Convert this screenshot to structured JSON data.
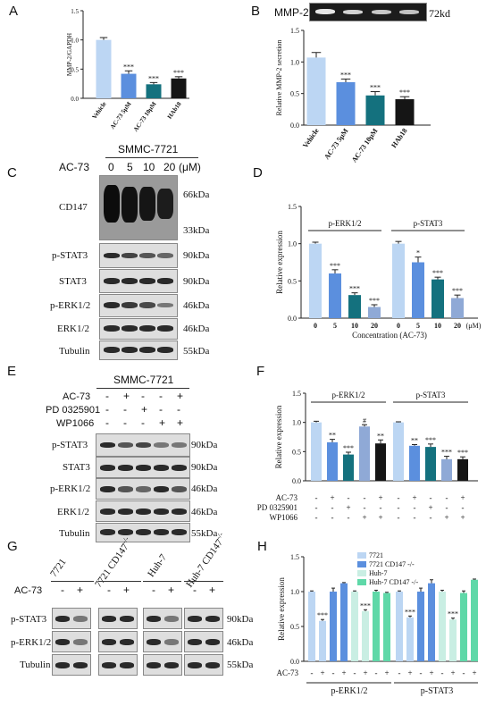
{
  "panels": {
    "A": "A",
    "B": "B",
    "C": "C",
    "D": "D",
    "E": "E",
    "F": "F",
    "G": "G",
    "H": "H"
  },
  "colors": {
    "vehicle": "#bcd6f3",
    "ac5": "#5b8fde",
    "ac10": "#14717e",
    "hab": "#151515",
    "c5": "#5b8fde",
    "c10": "#14717e",
    "c20": "#8fa9d6",
    "c0": "#bcd6f3",
    "hepG_light": "#c9eee3",
    "hep_green": "#5fd8a8"
  },
  "chart_data": [
    {
      "panel": "A",
      "type": "bar",
      "categories": [
        "Vehicle",
        "AC-73 5μM",
        "AC-73 10μM",
        "HAb18"
      ],
      "values": [
        1.0,
        0.42,
        0.24,
        0.34
      ],
      "errors": [
        0.04,
        0.05,
        0.03,
        0.03
      ],
      "stars": [
        "",
        "***",
        "***",
        "***"
      ],
      "ylabel": "MMP-2/GAPDH",
      "ylim": [
        0,
        1.5
      ],
      "yticks": [
        "0.0",
        "0.5",
        "1.0",
        "1.5"
      ]
    },
    {
      "panel": "B",
      "type": "bar",
      "categories": [
        "Vehicle",
        "AC-73 5μM",
        "AC-73 10μM",
        "HAb18"
      ],
      "values": [
        1.07,
        0.68,
        0.47,
        0.41
      ],
      "errors": [
        0.08,
        0.05,
        0.06,
        0.04
      ],
      "stars": [
        "",
        "***",
        "***",
        "***"
      ],
      "ylabel": "Relative MMP-2 secretion",
      "ylim": [
        0,
        1.5
      ],
      "yticks": [
        "0.0",
        "0.5",
        "1.0",
        "1.5"
      ]
    },
    {
      "panel": "D",
      "type": "bar",
      "groups": [
        "p-ERK1/2",
        "p-STAT3"
      ],
      "categories": [
        "0",
        "5",
        "10",
        "20"
      ],
      "series": [
        {
          "values": [
            1.0,
            0.6,
            0.31,
            0.15
          ],
          "errors": [
            0.02,
            0.05,
            0.03,
            0.03
          ],
          "stars": [
            "",
            "***",
            "***",
            "***"
          ]
        },
        {
          "values": [
            1.0,
            0.75,
            0.52,
            0.27
          ],
          "errors": [
            0.03,
            0.07,
            0.03,
            0.04
          ],
          "stars": [
            "",
            "*",
            "***",
            "***"
          ]
        }
      ],
      "xunit": "(μM)",
      "xlabel": "Concentration (AC-73)",
      "ylabel": "Relative expression",
      "ylim": [
        0,
        1.5
      ],
      "yticks": [
        "0.0",
        "0.5",
        "1.0",
        "1.5"
      ]
    },
    {
      "panel": "F",
      "type": "bar",
      "groups": [
        "p-ERK1/2",
        "p-STAT3"
      ],
      "series": [
        {
          "values": [
            1.0,
            0.66,
            0.45,
            0.93,
            0.64
          ],
          "errors": [
            0.02,
            0.05,
            0.04,
            0.03,
            0.06
          ],
          "stars": [
            "",
            "**",
            "***",
            "#",
            "**"
          ]
        },
        {
          "values": [
            1.0,
            0.6,
            0.58,
            0.37,
            0.37
          ],
          "errors": [
            0.01,
            0.02,
            0.05,
            0.05,
            0.04
          ],
          "stars": [
            "",
            "**",
            "***",
            "***",
            "***"
          ]
        }
      ],
      "treatment_rows": [
        {
          "label": "AC-73",
          "marks": [
            "-",
            "+",
            "-",
            "-",
            "+"
          ]
        },
        {
          "label": "PD 0325901",
          "marks": [
            "-",
            "-",
            "+",
            "-",
            "-"
          ]
        },
        {
          "label": "WP1066",
          "marks": [
            "-",
            "-",
            "-",
            "+",
            "+"
          ]
        }
      ],
      "ylabel": "Relative expression",
      "ylim": [
        0,
        1.5
      ],
      "yticks": [
        "0.0",
        "0.5",
        "1.0",
        "1.5"
      ]
    },
    {
      "panel": "H",
      "type": "bar",
      "groups": [
        "p-ERK1/2",
        "p-STAT3"
      ],
      "legend": [
        "7721",
        "7721 CD147 -/-",
        "Huh-7",
        "Huh-7 CD147 -/-"
      ],
      "series": [
        {
          "values": [
            1.0,
            0.58,
            1.0,
            1.12,
            1.0,
            0.72,
            1.0,
            0.98
          ],
          "errors": [
            0.01,
            0.02,
            0.05,
            0.01,
            0.01,
            0.02,
            0.02,
            0.01
          ],
          "stars": [
            "",
            "***",
            "",
            "",
            "",
            "***",
            "",
            ""
          ]
        },
        {
          "values": [
            1.0,
            0.63,
            1.0,
            1.12,
            1.0,
            0.6,
            0.98,
            1.17
          ],
          "errors": [
            0.01,
            0.02,
            0.05,
            0.05,
            0.02,
            0.02,
            0.03,
            0.01
          ],
          "stars": [
            "",
            "***",
            "",
            "",
            "",
            "***",
            "",
            ""
          ]
        }
      ],
      "ac73": [
        "-",
        "+",
        "-",
        "+",
        "-",
        "+",
        "-",
        "+"
      ],
      "ylabel": "Relative expression",
      "ylim": [
        0,
        1.5
      ],
      "yticks": [
        "0.0",
        "0.5",
        "1.0",
        "1.5"
      ],
      "rowlabel": "AC-73"
    }
  ],
  "blotB": {
    "title": "MMP-2",
    "kda": "72kd"
  },
  "blotC": {
    "cellline": "SMMC-7721",
    "ac73": "AC-73",
    "conc": [
      "0",
      "5",
      "10",
      "20"
    ],
    "unit": "(μM)",
    "rows": [
      {
        "name": "CD147",
        "kda": "66kDa",
        "kda2": "33kDa"
      },
      {
        "name": "p-STAT3",
        "kda": "90kDa"
      },
      {
        "name": "STAT3",
        "kda": "90kDa"
      },
      {
        "name": "p-ERK1/2",
        "kda": "46kDa"
      },
      {
        "name": "ERK1/2",
        "kda": "46kDa"
      },
      {
        "name": "Tubulin",
        "kda": "55kDa"
      }
    ]
  },
  "blotE": {
    "cellline": "SMMC-7721",
    "treat": [
      {
        "label": "AC-73",
        "marks": [
          "-",
          "+",
          "-",
          "-",
          "+"
        ]
      },
      {
        "label": "PD 0325901",
        "marks": [
          "-",
          "-",
          "+",
          "-",
          "-"
        ]
      },
      {
        "label": "WP1066",
        "marks": [
          "-",
          "-",
          "-",
          "+",
          "+"
        ]
      }
    ],
    "rows": [
      {
        "name": "p-STAT3",
        "kda": "90kDa"
      },
      {
        "name": "STAT3",
        "kda": "90kDa"
      },
      {
        "name": "p-ERK1/2",
        "kda": "46kDa"
      },
      {
        "name": "ERK1/2",
        "kda": "46kDa"
      },
      {
        "name": "Tubulin",
        "kda": "55kDa"
      }
    ]
  },
  "blotG": {
    "groups": [
      "7721",
      "7721 CD147",
      "Huh-7",
      "Huh-7 CD147"
    ],
    "ko": "-/-",
    "ac73": "AC-73",
    "marks": [
      "-",
      "+"
    ],
    "rows": [
      {
        "name": "p-STAT3",
        "kda": "90kDa"
      },
      {
        "name": "p-ERK1/2",
        "kda": "46kDa"
      },
      {
        "name": "Tubulin",
        "kda": "55kDa"
      }
    ]
  }
}
